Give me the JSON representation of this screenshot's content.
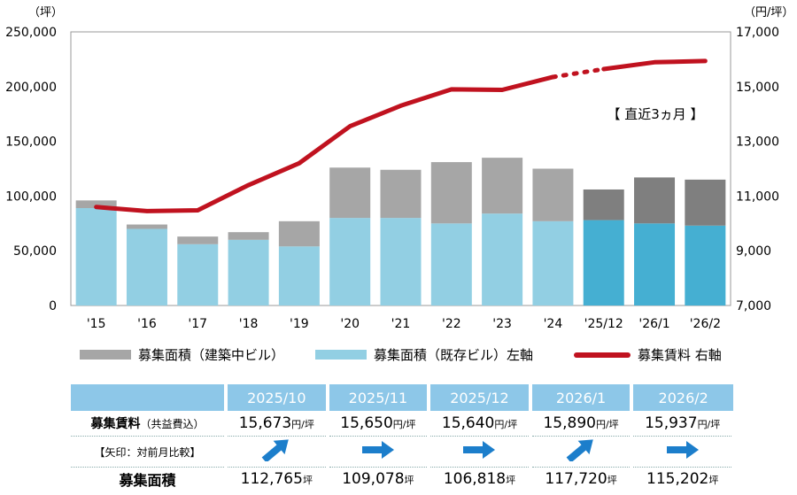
{
  "chart_data": {
    "type": "bar+line",
    "categories": [
      "'15",
      "'16",
      "'17",
      "'18",
      "'19",
      "'20",
      "'21",
      "'22",
      "'23",
      "'24",
      "'25/12",
      "'26/1",
      "'26/2"
    ],
    "left_axis": {
      "unit_label": "（坪）",
      "ylim": [
        0,
        250000
      ],
      "ticks": [
        "0",
        "50,000",
        "100,000",
        "150,000",
        "200,000",
        "250,000"
      ]
    },
    "right_axis": {
      "unit_label": "（円/坪）",
      "ylim": [
        7000,
        17000
      ],
      "ticks": [
        "7,000",
        "9,000",
        "11,000",
        "13,000",
        "15,000",
        "17,000"
      ]
    },
    "series": [
      {
        "name": "募集面積（既存ビル）左軸",
        "axis": "left",
        "kind": "bar-stack-bottom",
        "values": [
          89000,
          70000,
          56000,
          60000,
          54000,
          80000,
          80000,
          75000,
          84000,
          77000,
          78000,
          75000,
          73000
        ]
      },
      {
        "name": "募集面積（建築中ビル）",
        "axis": "left",
        "kind": "bar-stack-top",
        "values": [
          7000,
          4000,
          7000,
          7000,
          23000,
          46000,
          44000,
          56000,
          51000,
          48000,
          28000,
          42000,
          42000
        ]
      },
      {
        "name": "募集賃料 右軸",
        "axis": "right",
        "kind": "line",
        "values": [
          10600,
          10450,
          10480,
          11400,
          12200,
          13550,
          14300,
          14900,
          14880,
          15350,
          15640,
          15890,
          15937
        ]
      }
    ],
    "recent_highlight_from_index": 10,
    "dotted_segment": [
      9,
      10
    ],
    "annotation": "【 直近3ヵ月 】",
    "colors": {
      "existing": "#92cfe3",
      "existing_recent": "#45afd2",
      "construction": "#a6a6a6",
      "construction_recent": "#7f7f7f",
      "line": "#c0121f"
    }
  },
  "legend": {
    "construction": "募集面積（建築中ビル）",
    "existing": "募集面積（既存ビル）左軸",
    "rent": "募集賃料 右軸"
  },
  "table": {
    "months": [
      "2025/10",
      "2025/11",
      "2025/12",
      "2026/1",
      "2026/2"
    ],
    "rent_label": "募集賃料",
    "rent_note": "（共益費込）",
    "arrow_label": "【矢印：対前月比較】",
    "area_label": "募集面積",
    "rent_values": [
      "15,673",
      "15,650",
      "15,640",
      "15,890",
      "15,937"
    ],
    "rent_unit": "円/坪",
    "arrows": [
      "up",
      "flat",
      "flat",
      "up",
      "flat"
    ],
    "area_values": [
      "112,765",
      "109,078",
      "106,818",
      "117,720",
      "115,202"
    ],
    "area_unit": "坪",
    "arrow_color": "#1c7ecb"
  }
}
